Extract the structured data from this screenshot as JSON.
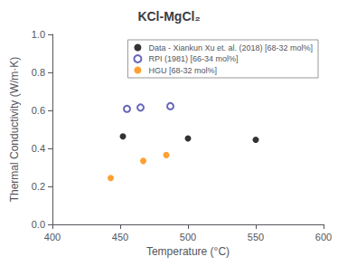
{
  "chart_data": {
    "type": "scatter",
    "title": "KCl-MgCl₂",
    "x_label": "Temperature (°C)",
    "y_label": "Thermal Conductivity (W/m·K)",
    "xlim": [
      400,
      600
    ],
    "ylim": [
      0.0,
      1.0
    ],
    "xticks": [
      400,
      450,
      500,
      550,
      600
    ],
    "yticks": [
      {
        "value": 0.0,
        "label": "0.0"
      },
      0.2,
      0.4,
      0.6,
      0.8,
      {
        "value": 1.0,
        "label": "1.0"
      }
    ],
    "grid": false,
    "legend": "upper right",
    "series": [
      {
        "name": "Data - Xiankun Xu et. al. (2018) [68-32 mol%]",
        "color": "#000000",
        "marker": "circle",
        "x": [
          452,
          500,
          550
        ],
        "values": [
          0.463,
          0.452,
          0.445
        ]
      },
      {
        "name": "RPI (1981) [66-34 mol%]",
        "color": "#4040AA",
        "marker": "open-circle",
        "x": [
          455,
          465,
          487
        ],
        "values": [
          0.608,
          0.615,
          0.622
        ]
      },
      {
        "name": "HGU [68-32 mol%]",
        "color": "#FF8800",
        "marker": "circle",
        "x": [
          443,
          467,
          484
        ],
        "values": [
          0.244,
          0.334,
          0.365
        ]
      }
    ]
  }
}
